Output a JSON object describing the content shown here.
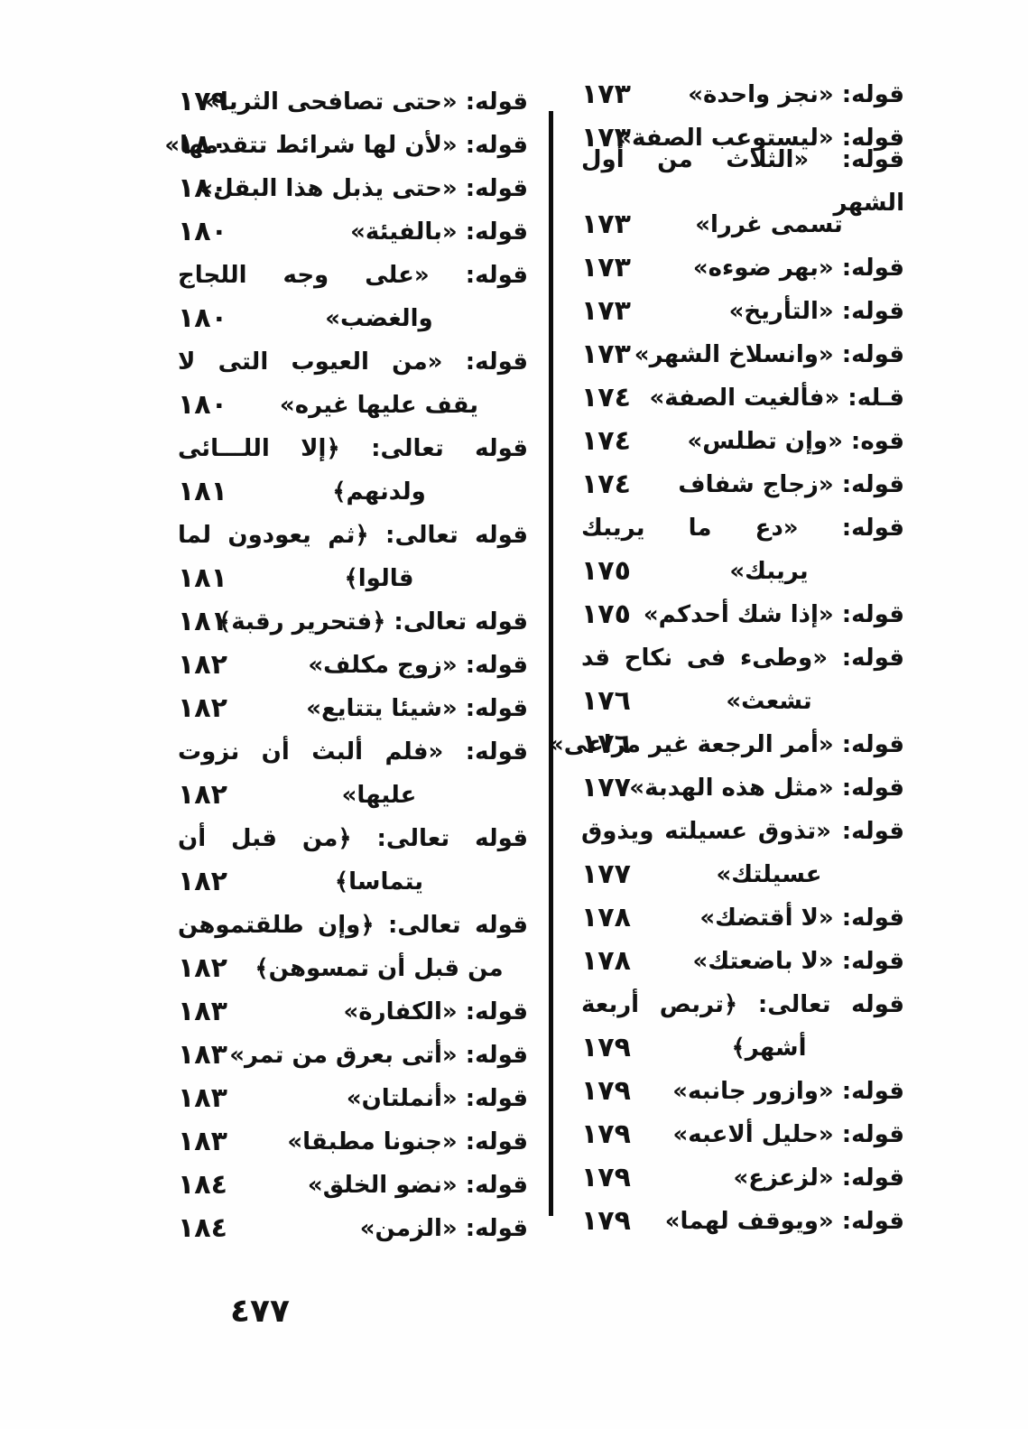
{
  "page": {
    "lang": "ar",
    "direction": "rtl",
    "paper_color": "#fefefe",
    "ink_color": "#121212",
    "page_number": "٤٧٧"
  },
  "index": {
    "right_column": {
      "entries": [
        {
          "lines": [
            "قوله: «نجز واحدة»"
          ],
          "page": "١٧٣"
        },
        {
          "lines": [
            "قوله: «ليستوعب الصفة»"
          ],
          "page": "١٧٣"
        },
        {
          "lines": [
            "قوله: «الثلاث من أول الشهر",
            "تسمى غررا»"
          ],
          "page": "١٧٣"
        },
        {
          "lines": [
            "قوله: «بهر ضوءه»"
          ],
          "page": "١٧٣"
        },
        {
          "lines": [
            "قوله: «التأريخ»"
          ],
          "page": "١٧٣"
        },
        {
          "lines": [
            "قوله: «وانسلاخ الشهر»"
          ],
          "page": "١٧٣"
        },
        {
          "lines": [
            "قـله: «فألغيت الصفة»"
          ],
          "page": "١٧٤"
        },
        {
          "lines": [
            "قوه: «وإن تطلس»"
          ],
          "page": "١٧٤"
        },
        {
          "lines": [
            "قوله: «زجاج شفاف"
          ],
          "page": "١٧٤"
        },
        {
          "lines": [
            "قوله: «دع ما يريبك",
            "يريبك»"
          ],
          "page": "١٧٥"
        },
        {
          "lines": [
            "قوله: «إذا شك أحدكم»"
          ],
          "page": "١٧٥"
        },
        {
          "lines": [
            "قوله: «وطىء فى نكاح قد",
            "تشعث»"
          ],
          "page": "١٧٦"
        },
        {
          "lines": [
            "قوله: «أمر الرجعة غير مراعى»"
          ],
          "page": "١٧٦"
        },
        {
          "lines": [
            "قوله: «مثل هذه الهدبة»"
          ],
          "page": "١٧٧"
        },
        {
          "lines": [
            "قوله: «تذوق عسيلته ويذوق",
            "عسيلتك»"
          ],
          "page": "١٧٧"
        },
        {
          "lines": [
            "قوله: «لا أقتضك»"
          ],
          "page": "١٧٨"
        },
        {
          "lines": [
            "قوله: «لا باضعتك»"
          ],
          "page": "١٧٨"
        },
        {
          "lines": [
            "قوله تعالى: ﴿تربص أربعة",
            "أشهر﴾"
          ],
          "page": "١٧٩"
        },
        {
          "lines": [
            "قوله: «وازور جانبه»"
          ],
          "page": "١٧٩"
        },
        {
          "lines": [
            "قوله: «حليل ألاعبه»"
          ],
          "page": "١٧٩"
        },
        {
          "lines": [
            "قوله: «لزعزع»"
          ],
          "page": "١٧٩"
        },
        {
          "lines": [
            "قوله: «ويوقف لهما»"
          ],
          "page": "١٧٩"
        }
      ]
    },
    "left_column": {
      "entries": [
        {
          "lines": [
            "قوله: «حتى تصافحى الثريا»"
          ],
          "page": "١٧٩"
        },
        {
          "lines": [
            "قوله: «لأن لها شرائط تتقدمها»"
          ],
          "page": "١٨٠"
        },
        {
          "lines": [
            "قوله: «حتى يذبل هذا البقل»"
          ],
          "page": "١٨٠"
        },
        {
          "lines": [
            "قوله: «بالفيئة»"
          ],
          "page": "١٨٠"
        },
        {
          "lines": [
            "قوله: «على وجه اللجاج",
            "والغضب»"
          ],
          "page": "١٨٠"
        },
        {
          "lines": [
            "قوله: «من العيوب التى لا",
            "يقف عليها غيره»"
          ],
          "page": "١٨٠"
        },
        {
          "lines": [
            "قوله تعالى: ﴿إلا اللـــائى",
            "ولدنهم﴾"
          ],
          "page": "١٨١"
        },
        {
          "lines": [
            "قوله تعالى: ﴿ثم يعودون لما",
            "قالوا﴾"
          ],
          "page": "١٨١"
        },
        {
          "lines": [
            "قوله تعالى: ﴿فتحرير رقبة﴾"
          ],
          "page": "١٨١"
        },
        {
          "lines": [
            "قوله: «زوج مكلف»"
          ],
          "page": "١٨٢"
        },
        {
          "lines": [
            "قوله: «شيئا يتتايع»"
          ],
          "page": "١٨٢"
        },
        {
          "lines": [
            "قوله: «فلم ألبث أن نزوت",
            "عليها»"
          ],
          "page": "١٨٢"
        },
        {
          "lines": [
            "قوله تعالى: ﴿من قبل أن",
            "يتماسا﴾"
          ],
          "page": "١٨٢"
        },
        {
          "lines": [
            "قوله تعالى: ﴿وإن طلقتموهن",
            "من قبل أن تمسوهن﴾"
          ],
          "page": "١٨٢"
        },
        {
          "lines": [
            "قوله: «الكفارة»"
          ],
          "page": "١٨٣"
        },
        {
          "lines": [
            "قوله: «أتى بعرق من تمر»"
          ],
          "page": "١٨٣"
        },
        {
          "lines": [
            "قوله: «أنملتان»"
          ],
          "page": "١٨٣"
        },
        {
          "lines": [
            "قوله: «جنونا مطبقا»"
          ],
          "page": "١٨٣"
        },
        {
          "lines": [
            "قوله: «نضو الخلق»"
          ],
          "page": "١٨٤"
        },
        {
          "lines": [
            "قوله: «الزمن»"
          ],
          "page": "١٨٤"
        }
      ]
    }
  }
}
